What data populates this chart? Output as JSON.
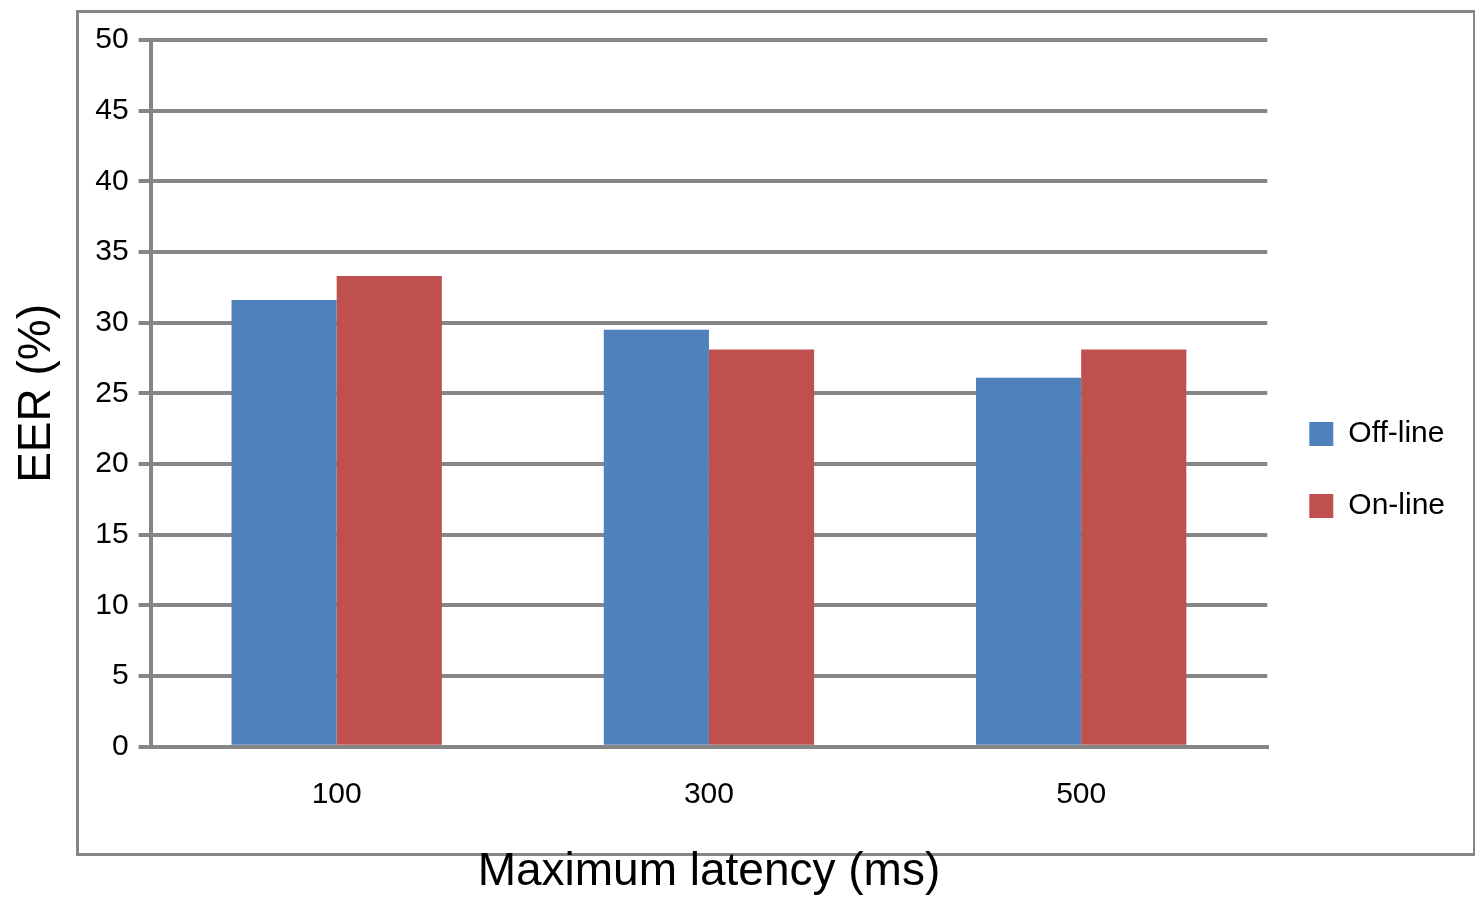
{
  "chart_data": {
    "type": "bar",
    "xlabel": "Maximum latency (ms)",
    "ylabel": "EER (%)",
    "categories": [
      "100",
      "300",
      "500"
    ],
    "series": [
      {
        "name": "Off-line",
        "color": "#4f81bd",
        "values": [
          31.6,
          29.5,
          26.1
        ]
      },
      {
        "name": "On-line",
        "color": "#c0504d",
        "values": [
          33.3,
          28.1,
          28.1
        ]
      }
    ],
    "ylim": [
      0,
      50
    ],
    "yticks": [
      0,
      5,
      10,
      15,
      20,
      25,
      30,
      35,
      40,
      45,
      50
    ],
    "grid": "y",
    "legend": "right"
  }
}
